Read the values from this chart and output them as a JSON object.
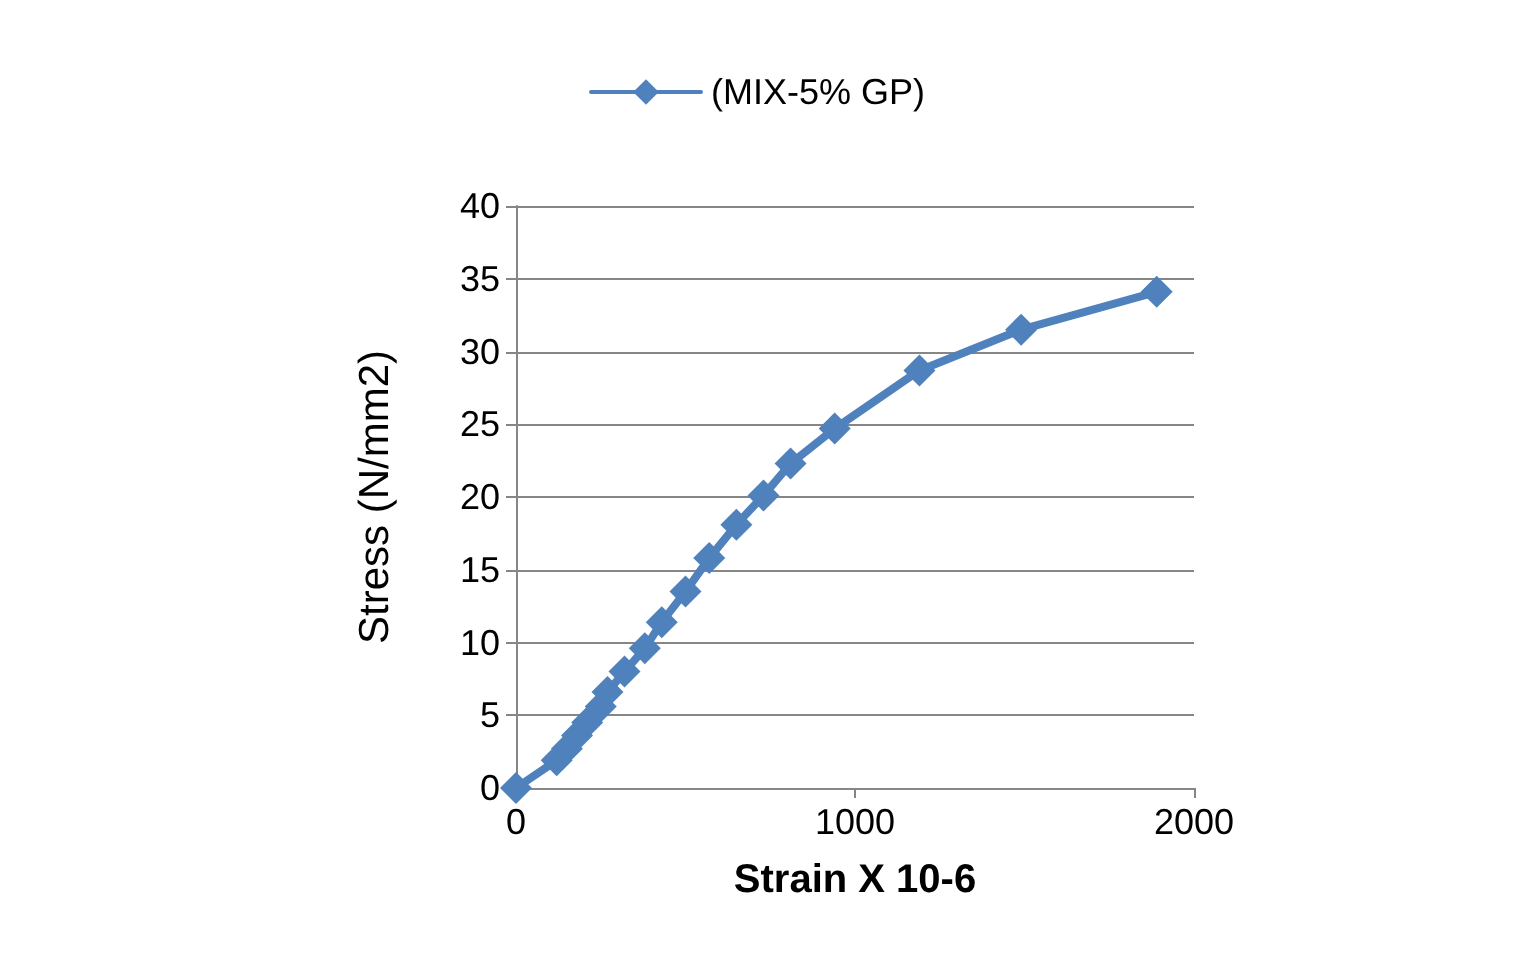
{
  "chart_data": {
    "type": "line",
    "xlabel": "Strain X 10-6",
    "ylabel": "Stress (N/mm2)",
    "series": [
      {
        "name": "(MIX-5% GP)",
        "color": "#4f81bd",
        "x": [
          0,
          120,
          150,
          180,
          210,
          250,
          270,
          320,
          380,
          430,
          500,
          570,
          650,
          730,
          810,
          940,
          1190,
          1490,
          1890
        ],
        "values": [
          0,
          1.9,
          2.7,
          3.6,
          4.5,
          5.6,
          6.6,
          8.0,
          9.6,
          11.4,
          13.5,
          15.8,
          18.1,
          20.1,
          22.3,
          24.7,
          28.7,
          31.5,
          34.1
        ]
      }
    ],
    "xlim": [
      0,
      2000
    ],
    "xticks": [
      0,
      1000,
      2000
    ],
    "ylim": [
      0,
      40
    ],
    "yticks": [
      0,
      5,
      10,
      15,
      20,
      25,
      30,
      35,
      40
    ],
    "grid": "y",
    "legend": "top",
    "marker": "diamond",
    "line_style": "solid"
  }
}
